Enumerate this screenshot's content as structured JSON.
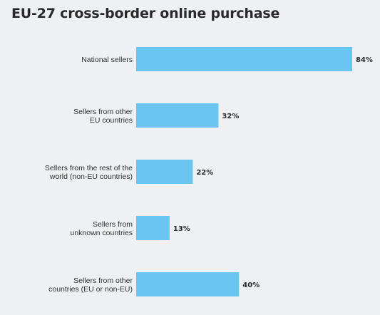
{
  "chart_data": {
    "type": "bar",
    "orientation": "horizontal",
    "title": "EU-27 cross-border online purchase",
    "categories": [
      [
        "National sellers"
      ],
      [
        "Sellers from other",
        "EU countries"
      ],
      [
        "Sellers from the rest of the",
        "world (non-EU countries)"
      ],
      [
        "Sellers from",
        "unknown countries"
      ],
      [
        "Sellers from other",
        "countries (EU or non-EU)"
      ]
    ],
    "values": [
      84,
      32,
      22,
      13,
      40
    ],
    "value_labels": [
      "84%",
      "32%",
      "22%",
      "13%",
      "40%"
    ],
    "unit": "%",
    "xlim": [
      0,
      84
    ],
    "grid": false,
    "bar_color": "#6ac6f0",
    "background_color": "#eef0f3"
  }
}
